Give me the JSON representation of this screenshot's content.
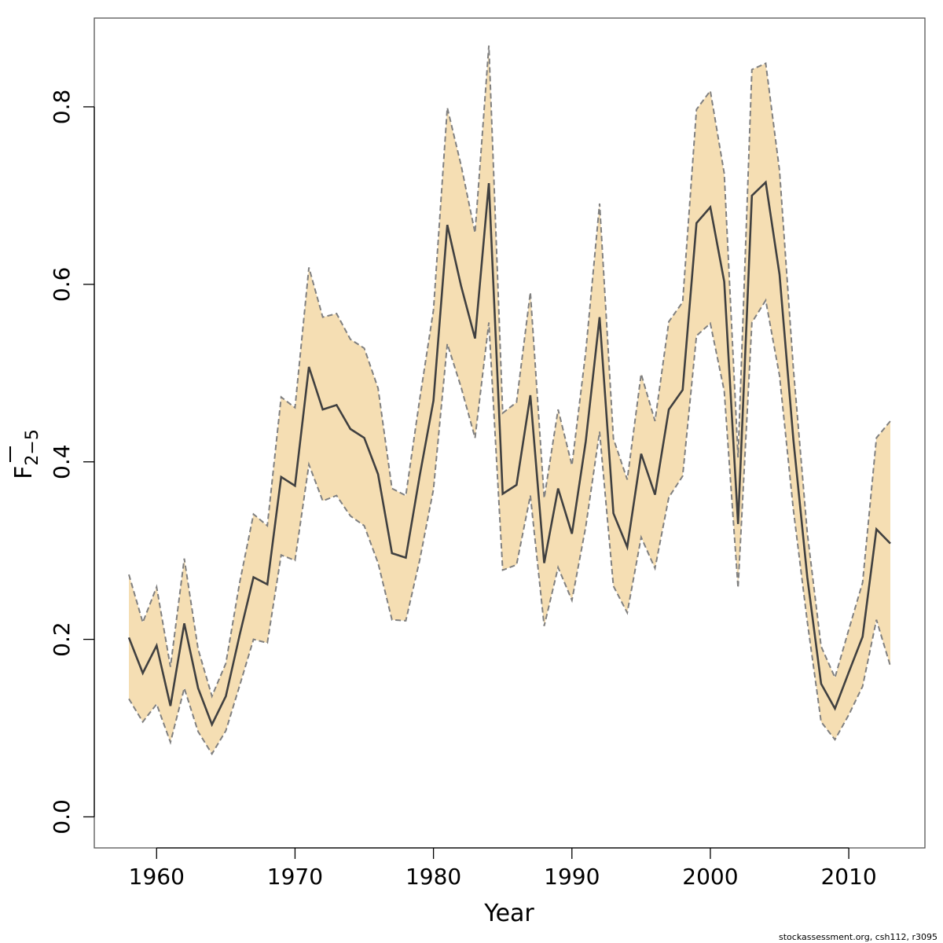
{
  "chart_data": {
    "type": "line",
    "xlabel": "Year",
    "ylabel_main": "F",
    "ylabel_sub": "2−5",
    "credit": "stockassessment.org, csh112, r3095",
    "xlim": [
      1955.5,
      2015.5
    ],
    "ylim": [
      -0.035,
      0.9
    ],
    "x_ticks": [
      1960,
      1970,
      1980,
      1990,
      2000,
      2010
    ],
    "y_ticks": [
      0.0,
      0.2,
      0.4,
      0.6,
      0.8
    ],
    "y_tick_labels": [
      "0.0",
      "0.2",
      "0.4",
      "0.6",
      "0.8"
    ],
    "colors": {
      "band": "#f5deb3",
      "line": "#404040",
      "bounds": "#808080",
      "frame": "#555555"
    },
    "x": [
      1958,
      1959,
      1960,
      1961,
      1962,
      1963,
      1964,
      1965,
      1966,
      1967,
      1968,
      1969,
      1970,
      1971,
      1972,
      1973,
      1974,
      1975,
      1976,
      1977,
      1978,
      1979,
      1980,
      1981,
      1982,
      1983,
      1984,
      1985,
      1986,
      1987,
      1988,
      1989,
      1990,
      1991,
      1992,
      1993,
      1994,
      1995,
      1996,
      1997,
      1998,
      1999,
      2000,
      2001,
      2002,
      2003,
      2004,
      2005,
      2006,
      2007,
      2008,
      2009,
      2010,
      2011,
      2012,
      2013
    ],
    "series": [
      {
        "role": "estimate",
        "values": [
          0.202,
          0.162,
          0.193,
          0.125,
          0.218,
          0.145,
          0.104,
          0.136,
          0.205,
          0.27,
          0.262,
          0.383,
          0.373,
          0.507,
          0.459,
          0.464,
          0.437,
          0.427,
          0.386,
          0.297,
          0.292,
          0.384,
          0.469,
          0.667,
          0.598,
          0.539,
          0.714,
          0.364,
          0.374,
          0.475,
          0.286,
          0.37,
          0.319,
          0.423,
          0.563,
          0.342,
          0.304,
          0.409,
          0.363,
          0.459,
          0.481,
          0.669,
          0.687,
          0.603,
          0.33,
          0.7,
          0.715,
          0.611,
          0.425,
          0.27,
          0.15,
          0.122,
          0.163,
          0.203,
          0.324,
          0.308
        ]
      },
      {
        "role": "upper",
        "values": [
          0.273,
          0.219,
          0.259,
          0.169,
          0.291,
          0.189,
          0.136,
          0.173,
          0.264,
          0.341,
          0.328,
          0.473,
          0.461,
          0.619,
          0.563,
          0.567,
          0.538,
          0.528,
          0.483,
          0.37,
          0.362,
          0.47,
          0.571,
          0.799,
          0.734,
          0.658,
          0.869,
          0.455,
          0.467,
          0.591,
          0.359,
          0.459,
          0.396,
          0.524,
          0.691,
          0.426,
          0.38,
          0.499,
          0.446,
          0.558,
          0.58,
          0.797,
          0.818,
          0.725,
          0.405,
          0.842,
          0.849,
          0.728,
          0.505,
          0.32,
          0.192,
          0.157,
          0.211,
          0.264,
          0.427,
          0.446
        ]
      },
      {
        "role": "lower",
        "values": [
          0.133,
          0.107,
          0.127,
          0.084,
          0.145,
          0.096,
          0.071,
          0.097,
          0.148,
          0.2,
          0.196,
          0.295,
          0.289,
          0.397,
          0.356,
          0.362,
          0.339,
          0.328,
          0.286,
          0.222,
          0.221,
          0.289,
          0.369,
          0.533,
          0.484,
          0.427,
          0.557,
          0.278,
          0.284,
          0.362,
          0.215,
          0.281,
          0.244,
          0.327,
          0.434,
          0.26,
          0.23,
          0.315,
          0.28,
          0.36,
          0.384,
          0.542,
          0.556,
          0.48,
          0.258,
          0.557,
          0.582,
          0.497,
          0.346,
          0.22,
          0.107,
          0.087,
          0.115,
          0.147,
          0.222,
          0.17
        ]
      }
    ]
  }
}
